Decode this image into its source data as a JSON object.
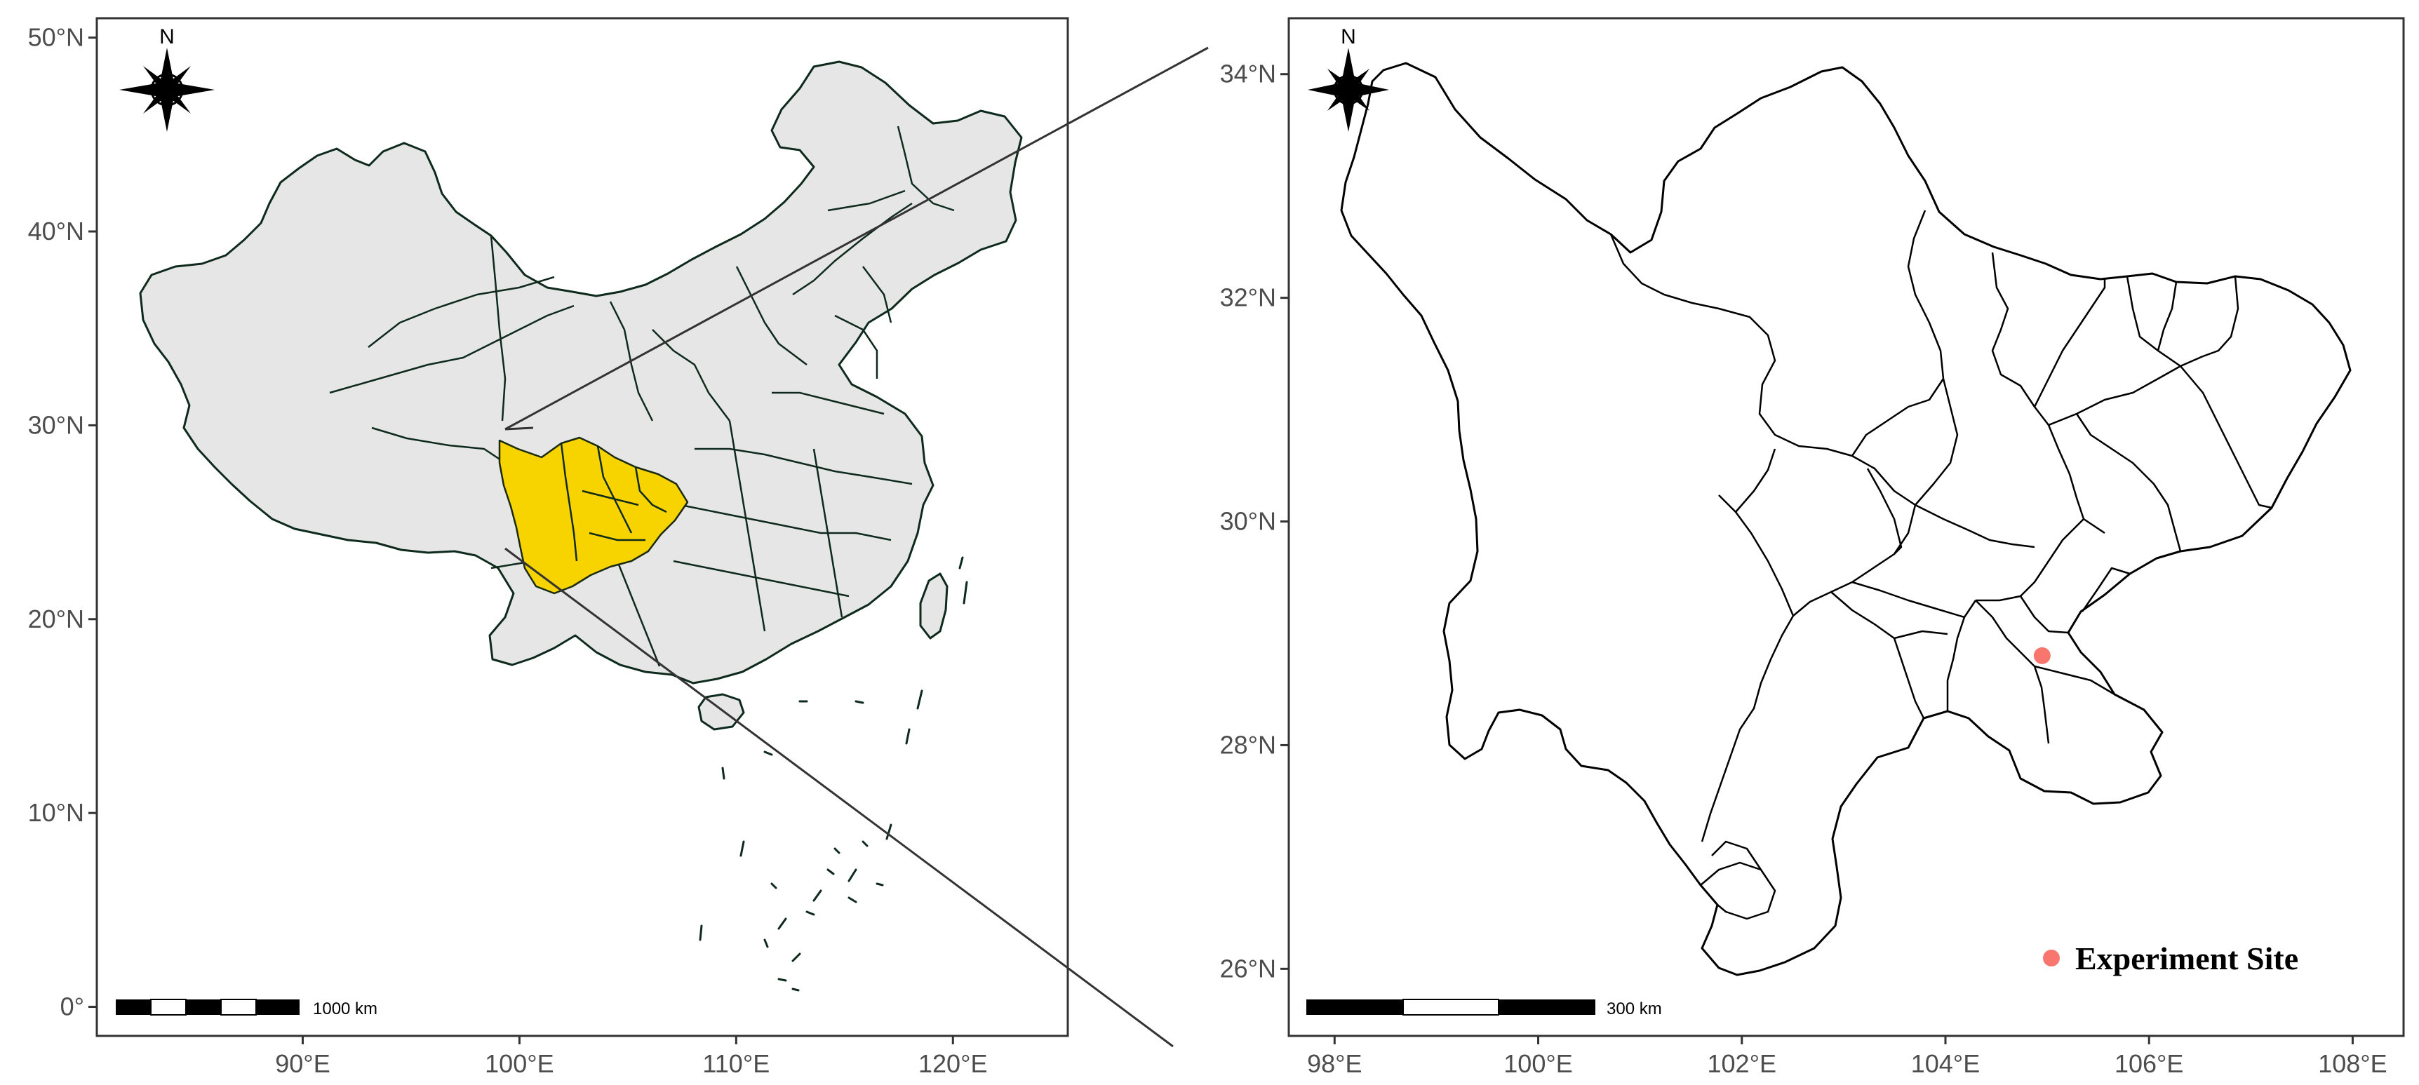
{
  "left_map": {
    "lon_ticks": [
      {
        "value": 90,
        "label": "90°E"
      },
      {
        "value": 100,
        "label": "100°E"
      },
      {
        "value": 110,
        "label": "110°E"
      },
      {
        "value": 120,
        "label": "120°E"
      }
    ],
    "lat_ticks": [
      {
        "value": 0,
        "label": "0°"
      },
      {
        "value": 10,
        "label": "10°N"
      },
      {
        "value": 20,
        "label": "20°N"
      },
      {
        "value": 30,
        "label": "30°N"
      },
      {
        "value": 40,
        "label": "40°N"
      },
      {
        "value": 50,
        "label": "50°N"
      }
    ],
    "lon_range": [
      80.5,
      125.3
    ],
    "lat_range": [
      -1.5,
      51
    ],
    "north_label": "N",
    "scale_label": "1000 km",
    "region_colors": {
      "country": "#e6e6e6",
      "highlight": "#f7d300",
      "border": "#0e2a1c"
    }
  },
  "right_map": {
    "lon_ticks": [
      {
        "value": 98,
        "label": "98°E"
      },
      {
        "value": 100,
        "label": "100°E"
      },
      {
        "value": 102,
        "label": "102°E"
      },
      {
        "value": 104,
        "label": "104°E"
      },
      {
        "value": 106,
        "label": "106°E"
      },
      {
        "value": 108,
        "label": "108°E"
      }
    ],
    "lat_ticks": [
      {
        "value": 26,
        "label": "26°N"
      },
      {
        "value": 28,
        "label": "28°N"
      },
      {
        "value": 30,
        "label": "30°N"
      },
      {
        "value": 32,
        "label": "32°N"
      },
      {
        "value": 34,
        "label": "34°N"
      }
    ],
    "lon_range": [
      97.55,
      108.5
    ],
    "lat_range": [
      25.4,
      34.5
    ],
    "north_label": "N",
    "scale_label": "300 km",
    "site": {
      "lon": 104.95,
      "lat": 28.8,
      "color": "#f8766d"
    },
    "legend": {
      "label": "Experiment Site",
      "color": "#f8766d",
      "position": "bottom-right"
    }
  }
}
